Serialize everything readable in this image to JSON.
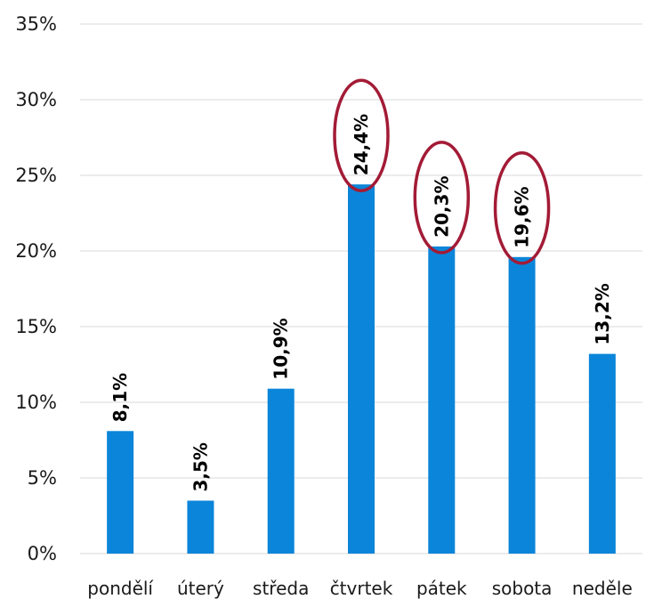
{
  "chart_data": {
    "type": "bar",
    "categories": [
      "pondělí",
      "úterý",
      "středa",
      "čtvrtek",
      "pátek",
      "sobota",
      "neděle"
    ],
    "values": [
      8.1,
      3.5,
      10.9,
      24.4,
      20.3,
      19.6,
      13.2
    ],
    "value_labels": [
      "8,1%",
      "3,5%",
      "10,9%",
      "24,4%",
      "20,3%",
      "19,6%",
      "13,2%"
    ],
    "y_ticks": [
      {
        "value": 0,
        "label": "0%"
      },
      {
        "value": 5,
        "label": "5%"
      },
      {
        "value": 10,
        "label": "10%"
      },
      {
        "value": 15,
        "label": "15%"
      },
      {
        "value": 20,
        "label": "20%"
      },
      {
        "value": 25,
        "label": "25%"
      },
      {
        "value": 30,
        "label": "30%"
      },
      {
        "value": 35,
        "label": "35%"
      }
    ],
    "ylim": [
      0,
      35
    ],
    "grid": true,
    "legend": "none",
    "highlighted_categories": [
      "čtvrtek",
      "pátek",
      "sobota"
    ],
    "colors": {
      "bar": "#0b85d9",
      "highlight_ellipse": "#a31b36",
      "grid": "#d9d9d9",
      "text": "#1a1a1a"
    }
  }
}
